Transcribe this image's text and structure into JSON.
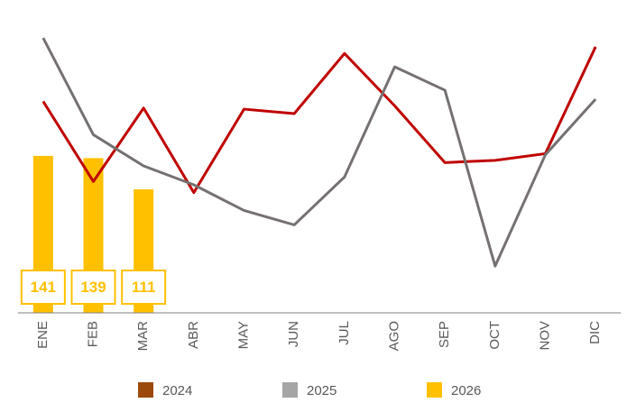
{
  "chart_data": {
    "type": "combo",
    "categories": [
      "ENE",
      "FEB",
      "MAR",
      "ABR",
      "MAY",
      "JUN",
      "JUL",
      "AGO",
      "SEP",
      "OCT",
      "NOV",
      "DIC"
    ],
    "series": [
      {
        "name": "2024",
        "type": "line",
        "color": "#c00000",
        "legend_color": "#9c4a0c",
        "values": [
          190,
          118,
          184,
          108,
          183,
          179,
          233,
          186,
          135,
          137,
          143,
          239
        ]
      },
      {
        "name": "2025",
        "type": "line",
        "color": "#767171",
        "legend_color": "#a5a5a5",
        "values": [
          247,
          160,
          132,
          115,
          92,
          79,
          122,
          221,
          200,
          42,
          142,
          192
        ]
      },
      {
        "name": "2026",
        "type": "bar",
        "color": "#ffc000",
        "legend_color": "#ffc000",
        "data_labels": true,
        "values": [
          141,
          139,
          111,
          null,
          null,
          null,
          null,
          null,
          null,
          null,
          null,
          null
        ]
      }
    ],
    "ylim": [
      0,
      260
    ],
    "legend": "bottom"
  }
}
